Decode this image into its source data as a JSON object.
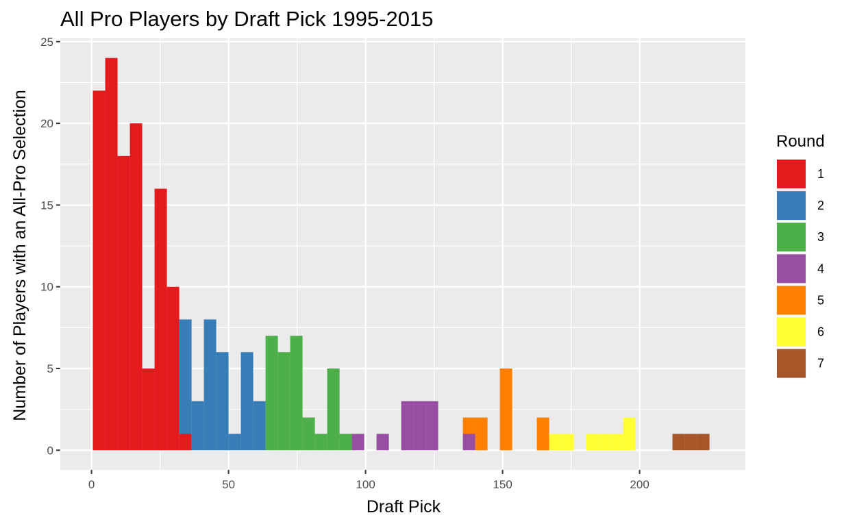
{
  "chart_data": {
    "type": "bar",
    "title": "All Pro Players by Draft Pick 1995-2015",
    "xlabel": "Draft Pick",
    "ylabel": "Number of Players with an All-Pro Selection",
    "xlim": [
      -11.4,
      238.6
    ],
    "ylim": [
      -1.2,
      25.2
    ],
    "x_ticks": [
      0,
      50,
      100,
      150,
      200
    ],
    "y_ticks": [
      0,
      5,
      10,
      15,
      20,
      25
    ],
    "bin_width": 4.5,
    "stacked": true,
    "grid": true,
    "legend": {
      "title": "Round",
      "position": "right",
      "entries": [
        {
          "label": "1",
          "color": "#E41A1C"
        },
        {
          "label": "2",
          "color": "#377EB8"
        },
        {
          "label": "3",
          "color": "#4DAF4A"
        },
        {
          "label": "4",
          "color": "#984EA3"
        },
        {
          "label": "5",
          "color": "#FF7F00"
        },
        {
          "label": "6",
          "color": "#FFFF33"
        },
        {
          "label": "7",
          "color": "#A65628"
        }
      ]
    },
    "series": [
      {
        "name": "1",
        "color": "#E41A1C",
        "bins": [
          {
            "x": 0.5,
            "y": 22
          },
          {
            "x": 5.0,
            "y": 24
          },
          {
            "x": 9.5,
            "y": 18
          },
          {
            "x": 14.0,
            "y": 20
          },
          {
            "x": 18.5,
            "y": 5
          },
          {
            "x": 23.0,
            "y": 16
          },
          {
            "x": 27.5,
            "y": 10
          },
          {
            "x": 32.0,
            "y": 1
          }
        ]
      },
      {
        "name": "2",
        "color": "#377EB8",
        "bins": [
          {
            "x": 32.0,
            "y": 7
          },
          {
            "x": 36.5,
            "y": 3
          },
          {
            "x": 41.0,
            "y": 8
          },
          {
            "x": 45.5,
            "y": 6
          },
          {
            "x": 50.0,
            "y": 1
          },
          {
            "x": 54.5,
            "y": 6
          },
          {
            "x": 59.0,
            "y": 3
          }
        ]
      },
      {
        "name": "3",
        "color": "#4DAF4A",
        "bins": [
          {
            "x": 63.5,
            "y": 7
          },
          {
            "x": 68.0,
            "y": 6
          },
          {
            "x": 72.5,
            "y": 7
          },
          {
            "x": 77.0,
            "y": 2
          },
          {
            "x": 81.5,
            "y": 1
          },
          {
            "x": 86.0,
            "y": 5
          },
          {
            "x": 90.5,
            "y": 1
          }
        ]
      },
      {
        "name": "4",
        "color": "#984EA3",
        "bins": [
          {
            "x": 95.0,
            "y": 1
          },
          {
            "x": 104.0,
            "y": 1
          },
          {
            "x": 113.0,
            "y": 3
          },
          {
            "x": 117.5,
            "y": 3
          },
          {
            "x": 122.0,
            "y": 3
          },
          {
            "x": 135.5,
            "y": 1
          }
        ]
      },
      {
        "name": "5",
        "color": "#FF7F00",
        "bins": [
          {
            "x": 135.5,
            "y": 1
          },
          {
            "x": 140.0,
            "y": 2
          },
          {
            "x": 149.0,
            "y": 5
          },
          {
            "x": 162.5,
            "y": 2
          }
        ]
      },
      {
        "name": "6",
        "color": "#FFFF33",
        "bins": [
          {
            "x": 167.0,
            "y": 1
          },
          {
            "x": 171.5,
            "y": 1
          },
          {
            "x": 180.5,
            "y": 1
          },
          {
            "x": 185.0,
            "y": 1
          },
          {
            "x": 189.5,
            "y": 1
          },
          {
            "x": 194.0,
            "y": 2
          }
        ]
      },
      {
        "name": "7",
        "color": "#A65628",
        "bins": [
          {
            "x": 212.0,
            "y": 1
          },
          {
            "x": 216.5,
            "y": 1
          },
          {
            "x": 221.0,
            "y": 1
          }
        ]
      }
    ]
  }
}
